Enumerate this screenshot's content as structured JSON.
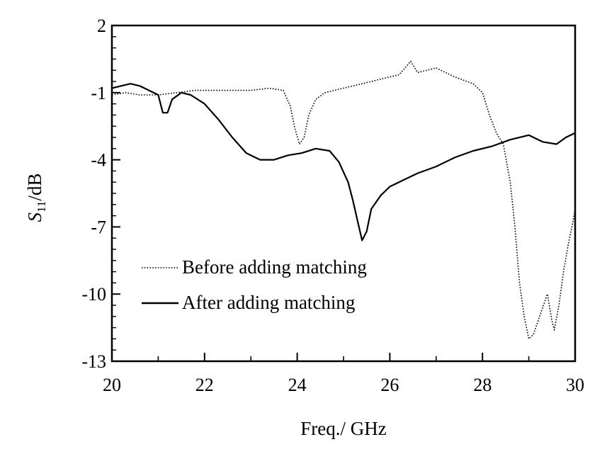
{
  "chart_data": {
    "type": "line",
    "title": "",
    "xlabel": "Freq./ GHz",
    "ylabel_main": "S",
    "ylabel_sub": "11",
    "ylabel_unit": "/dB",
    "xlim": [
      20,
      30
    ],
    "ylim": [
      -13,
      2
    ],
    "x_ticks": [
      20,
      22,
      24,
      26,
      28,
      30
    ],
    "y_ticks": [
      -13,
      -10,
      -7,
      -4,
      -1,
      2
    ],
    "grid": false,
    "legend_position": "bottom-left",
    "series": [
      {
        "name": "Before adding matching",
        "style": "dotted",
        "color": "#000000",
        "points": [
          [
            20.0,
            -1.1
          ],
          [
            20.3,
            -1.0
          ],
          [
            20.6,
            -1.1
          ],
          [
            21.0,
            -1.1
          ],
          [
            21.4,
            -1.0
          ],
          [
            21.8,
            -0.9
          ],
          [
            22.2,
            -0.9
          ],
          [
            22.6,
            -0.9
          ],
          [
            23.0,
            -0.9
          ],
          [
            23.4,
            -0.8
          ],
          [
            23.7,
            -0.9
          ],
          [
            23.85,
            -1.6
          ],
          [
            23.95,
            -2.6
          ],
          [
            24.05,
            -3.3
          ],
          [
            24.15,
            -3.0
          ],
          [
            24.25,
            -2.0
          ],
          [
            24.4,
            -1.3
          ],
          [
            24.6,
            -1.0
          ],
          [
            25.0,
            -0.8
          ],
          [
            25.4,
            -0.6
          ],
          [
            25.8,
            -0.4
          ],
          [
            26.2,
            -0.2
          ],
          [
            26.45,
            0.4
          ],
          [
            26.6,
            -0.1
          ],
          [
            27.0,
            0.1
          ],
          [
            27.4,
            -0.3
          ],
          [
            27.8,
            -0.6
          ],
          [
            28.0,
            -1.0
          ],
          [
            28.15,
            -2.0
          ],
          [
            28.3,
            -2.8
          ],
          [
            28.45,
            -3.3
          ],
          [
            28.6,
            -5.0
          ],
          [
            28.7,
            -7.0
          ],
          [
            28.8,
            -9.5
          ],
          [
            28.9,
            -11.0
          ],
          [
            29.0,
            -12.0
          ],
          [
            29.1,
            -11.8
          ],
          [
            29.2,
            -11.2
          ],
          [
            29.3,
            -10.6
          ],
          [
            29.4,
            -10.0
          ],
          [
            29.5,
            -11.2
          ],
          [
            29.55,
            -11.6
          ],
          [
            29.65,
            -10.5
          ],
          [
            29.75,
            -9.0
          ],
          [
            29.85,
            -7.8
          ],
          [
            29.95,
            -6.8
          ],
          [
            30.0,
            -6.2
          ]
        ]
      },
      {
        "name": "After adding matching",
        "style": "solid",
        "color": "#000000",
        "points": [
          [
            20.0,
            -0.8
          ],
          [
            20.2,
            -0.7
          ],
          [
            20.4,
            -0.6
          ],
          [
            20.6,
            -0.7
          ],
          [
            20.8,
            -0.9
          ],
          [
            21.0,
            -1.1
          ],
          [
            21.1,
            -1.9
          ],
          [
            21.2,
            -1.9
          ],
          [
            21.3,
            -1.3
          ],
          [
            21.5,
            -1.0
          ],
          [
            21.7,
            -1.1
          ],
          [
            22.0,
            -1.5
          ],
          [
            22.3,
            -2.2
          ],
          [
            22.6,
            -3.0
          ],
          [
            22.9,
            -3.7
          ],
          [
            23.2,
            -4.0
          ],
          [
            23.5,
            -4.0
          ],
          [
            23.8,
            -3.8
          ],
          [
            24.1,
            -3.7
          ],
          [
            24.4,
            -3.5
          ],
          [
            24.7,
            -3.6
          ],
          [
            24.9,
            -4.1
          ],
          [
            25.1,
            -5.0
          ],
          [
            25.2,
            -5.8
          ],
          [
            25.3,
            -6.7
          ],
          [
            25.4,
            -7.6
          ],
          [
            25.5,
            -7.2
          ],
          [
            25.6,
            -6.2
          ],
          [
            25.8,
            -5.6
          ],
          [
            26.0,
            -5.2
          ],
          [
            26.3,
            -4.9
          ],
          [
            26.6,
            -4.6
          ],
          [
            27.0,
            -4.3
          ],
          [
            27.4,
            -3.9
          ],
          [
            27.8,
            -3.6
          ],
          [
            28.2,
            -3.4
          ],
          [
            28.6,
            -3.1
          ],
          [
            29.0,
            -2.9
          ],
          [
            29.3,
            -3.2
          ],
          [
            29.6,
            -3.3
          ],
          [
            29.8,
            -3.0
          ],
          [
            30.0,
            -2.8
          ]
        ]
      }
    ]
  }
}
